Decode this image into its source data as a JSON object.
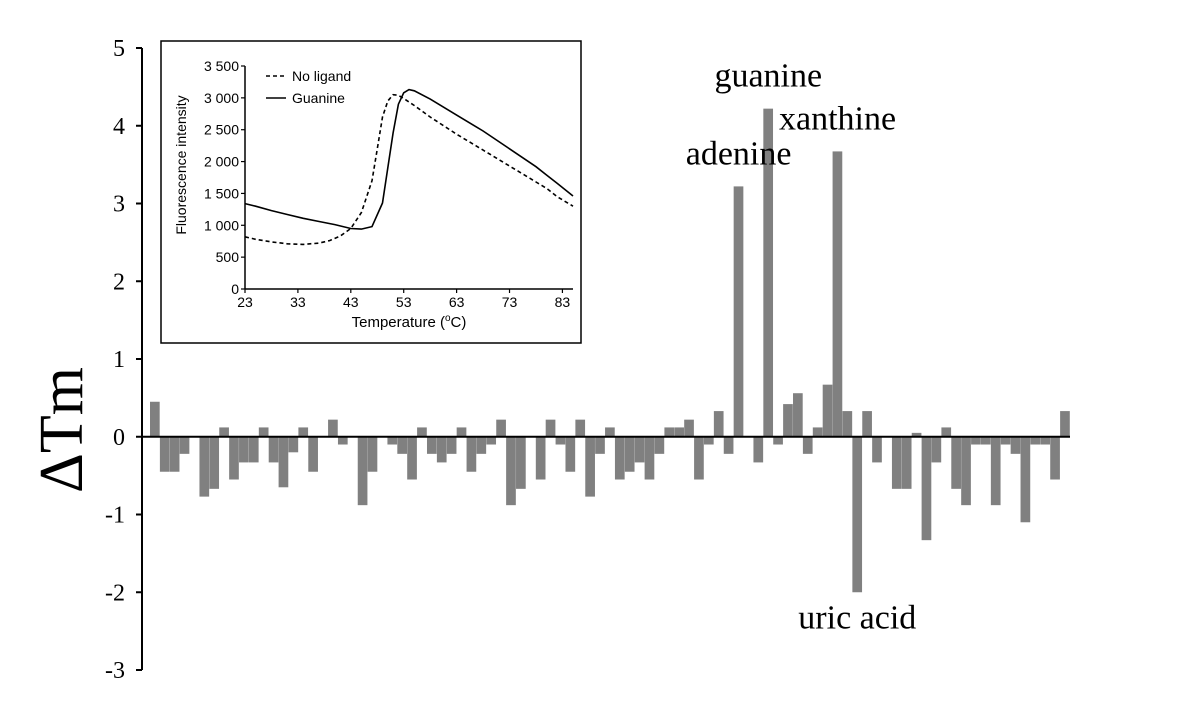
{
  "colors": {
    "bar": "#808080",
    "axis": "#000000",
    "background": "#ffffff"
  },
  "chart_data": [
    {
      "type": "bar",
      "title": "",
      "xlabel": "",
      "ylabel": "ΔTm",
      "ylim": [
        -3,
        5
      ],
      "yticks": [
        "5",
        "4",
        "3",
        "2",
        "1",
        "0",
        "-1",
        "-2",
        "-3"
      ],
      "grid": false,
      "values": [
        0.45,
        -0.45,
        -0.45,
        -0.22,
        0,
        -0.77,
        -0.67,
        0.12,
        -0.55,
        -0.33,
        -0.33,
        0.12,
        -0.33,
        -0.65,
        -0.2,
        0.12,
        -0.45,
        0,
        0.22,
        -0.1,
        0,
        -0.88,
        -0.45,
        0,
        -0.1,
        -0.22,
        -0.55,
        0.12,
        -0.22,
        -0.33,
        -0.22,
        0.12,
        -0.45,
        -0.22,
        -0.1,
        0.22,
        -0.88,
        -0.67,
        0,
        -0.55,
        0.22,
        -0.1,
        -0.45,
        0.22,
        -0.77,
        -0.22,
        0.12,
        -0.55,
        -0.45,
        -0.33,
        -0.55,
        -0.22,
        0.12,
        0.12,
        0.22,
        -0.55,
        -0.1,
        0.33,
        -0.22,
        3.22,
        0,
        -0.33,
        4.22,
        -0.1,
        0.42,
        0.56,
        -0.22,
        0.12,
        0.67,
        3.67,
        0.33,
        -2.0,
        0.33,
        -0.33,
        0,
        -0.67,
        -0.67,
        0.05,
        -1.33,
        -0.33,
        0.12,
        -0.67,
        -0.88,
        -0.1,
        -0.1,
        -0.88,
        -0.1,
        -0.22,
        -1.1,
        -0.1,
        -0.1,
        -0.55,
        0.33
      ],
      "annotations": [
        {
          "text": "adenine",
          "index": 59
        },
        {
          "text": "guanine",
          "index": 62
        },
        {
          "text": "xanthine",
          "index": 69
        },
        {
          "text": "uric acid",
          "index": 71
        }
      ]
    },
    {
      "type": "line",
      "title": "",
      "xlabel": "Temperature (",
      "xlabel_sup": "o",
      "xlabel_tail": "C)",
      "ylabel": "Fluorescence intensity",
      "xlim": [
        23,
        85
      ],
      "ylim": [
        0,
        3500
      ],
      "xticks": [
        "23",
        "33",
        "43",
        "53",
        "63",
        "73",
        "83"
      ],
      "yticks": [
        "3 500",
        "3 000",
        "2 500",
        "2 000",
        "1 500",
        "1 000",
        "500",
        "0"
      ],
      "legend_position": "top-left",
      "series": [
        {
          "name": "No ligand",
          "style": "dashed",
          "x": [
            23,
            25,
            28,
            31,
            34,
            37,
            39,
            41,
            43,
            45,
            47,
            48,
            49,
            50,
            51,
            52,
            53,
            55,
            58,
            63,
            68,
            73,
            78,
            80,
            82,
            85
          ],
          "y": [
            820,
            780,
            740,
            710,
            700,
            720,
            760,
            830,
            950,
            1200,
            1700,
            2200,
            2700,
            2950,
            3050,
            3040,
            2990,
            2880,
            2700,
            2430,
            2180,
            1930,
            1680,
            1580,
            1450,
            1300
          ]
        },
        {
          "name": "Guanine",
          "style": "solid",
          "x": [
            23,
            25,
            28,
            31,
            34,
            37,
            40,
            43,
            45,
            47,
            49,
            50,
            51,
            52,
            53,
            54,
            55,
            58,
            63,
            68,
            73,
            78,
            80,
            82,
            85
          ],
          "y": [
            1340,
            1300,
            1230,
            1170,
            1110,
            1060,
            1010,
            950,
            940,
            980,
            1350,
            1900,
            2450,
            2900,
            3080,
            3130,
            3110,
            2980,
            2730,
            2480,
            2200,
            1920,
            1790,
            1660,
            1460
          ]
        }
      ]
    }
  ]
}
